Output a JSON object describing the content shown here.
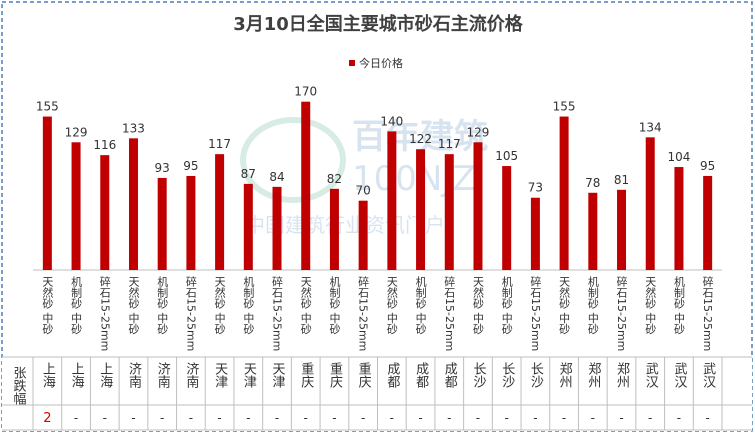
{
  "chart_data": {
    "type": "bar",
    "title": "3月10日全国主要城市砂石主流价格",
    "categories": [
      "天然砂 中砂",
      "机制砂 中砂",
      "碎石15-25mm",
      "天然砂 中砂",
      "机制砂 中砂",
      "碎石15-25mm",
      "天然砂 中砂",
      "机制砂 中砂",
      "碎石15-25mm",
      "天然砂 中砂",
      "机制砂 中砂",
      "碎石15-25mm",
      "天然砂 中砂",
      "机制砂 中砂",
      "碎石15-25mm",
      "天然砂 中砂",
      "机制砂 中砂",
      "碎石15-25mm",
      "天然砂 中砂",
      "机制砂 中砂",
      "碎石15-25mm",
      "天然砂 中砂",
      "机制砂 中砂",
      "碎石15-25mm"
    ],
    "series": [
      {
        "name": "今日价格",
        "color": "#c00000",
        "values": [
          155,
          129,
          116,
          133,
          93,
          95,
          117,
          87,
          84,
          170,
          82,
          70,
          140,
          122,
          117,
          129,
          105,
          73,
          155,
          78,
          81,
          134,
          104,
          95
        ]
      }
    ],
    "legend": "top"
  },
  "table": {
    "row_header": "张跌幅",
    "cities": [
      "上海",
      "上海",
      "上海",
      "济南",
      "济南",
      "济南",
      "天津",
      "天津",
      "天津",
      "重庆",
      "重庆",
      "重庆",
      "成都",
      "成都",
      "成都",
      "长沙",
      "长沙",
      "长沙",
      "郑州",
      "郑州",
      "郑州",
      "武汉",
      "武汉",
      "武汉"
    ],
    "changes": [
      "2",
      "-",
      "-",
      "-",
      "-",
      "-",
      "-",
      "-",
      "-",
      "-",
      "-",
      "-",
      "-",
      "-",
      "-",
      "-",
      "-",
      "-",
      "-",
      "-",
      "-",
      "-",
      "-",
      "-"
    ]
  },
  "watermark": {
    "brand": "百年建筑",
    "code": "100NJZ",
    "slogan": "中国建筑行业资讯门户"
  }
}
